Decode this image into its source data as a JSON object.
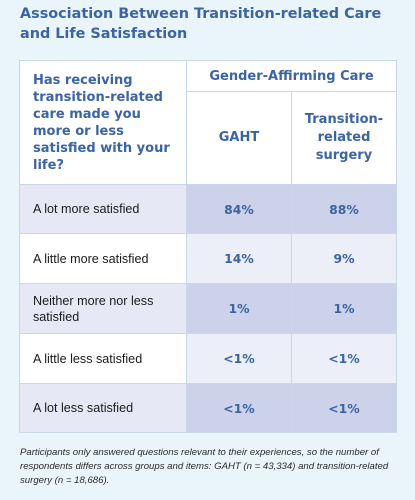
{
  "title": "Association Between Transition-related Care and Life Satisfaction",
  "colors": {
    "title": "#3b64a3",
    "background": "#eaf4fb",
    "value_cell_dark": "#cdd2eb",
    "value_cell_light": "#eceef8"
  },
  "chart_data": {
    "type": "table",
    "title": "Association Between Transition-related Care and Life Satisfaction",
    "question": "Has receiving transition-related care made you more or less satisfied with your life?",
    "group_header": "Gender-Affirming Care",
    "columns": [
      "GAHT",
      "Transition-related surgery"
    ],
    "rows": [
      {
        "label": "A lot more satisfied",
        "values": [
          "84%",
          "88%"
        ]
      },
      {
        "label": "A little more satisfied",
        "values": [
          "14%",
          "9%"
        ]
      },
      {
        "label": "Neither more nor less satisfied",
        "values": [
          "1%",
          "1%"
        ]
      },
      {
        "label": "A little less satisfied",
        "values": [
          "<1%",
          "<1%"
        ]
      },
      {
        "label": "A lot less satisfied",
        "values": [
          "<1%",
          "<1%"
        ]
      }
    ],
    "note": "Participants only answered questions relevant to their experiences, so the number of respondents differs across groups and items: GAHT (n = 43,334) and transition-related surgery (n = 18,686)."
  }
}
